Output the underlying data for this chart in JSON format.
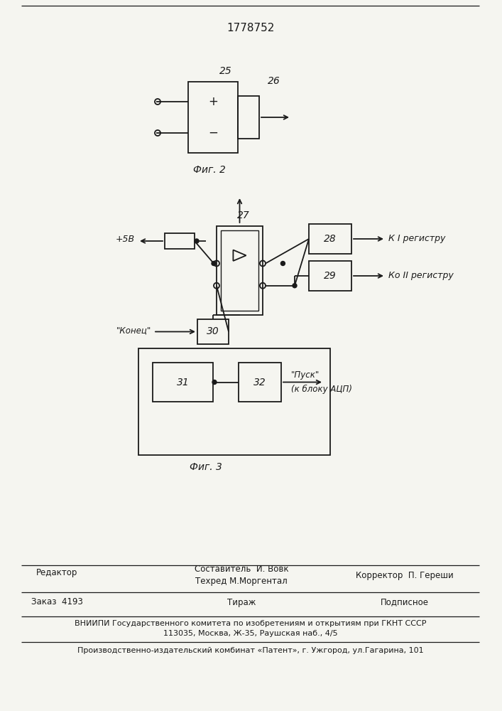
{
  "title": "1778752",
  "bg_color": "#f5f5f0",
  "line_color": "#1a1a1a",
  "fig2_label": "Фиг. 2",
  "fig3_label": "Фиг. 3",
  "footer_editor": "Редактор",
  "footer_col2_line1": "Составитель  И. Вовк",
  "footer_col2_line2": "Техред М.Моргентал",
  "footer_col3": "Корректор  П. Гереши",
  "footer_order": "Заказ  4193",
  "footer_tirazh": "Тираж",
  "footer_podpisnoe": "Подписное",
  "footer_vnipi": "ВНИИПИ Государственного комитета по изобретениям и открытиям при ГКНТ СССР",
  "footer_address": "113035, Москва, Ж-35, Раушская наб., 4/5",
  "footer_patent": "Производственно-издательский комбинат «Патент», г. Ужгород, ул.Гагарина, 101"
}
